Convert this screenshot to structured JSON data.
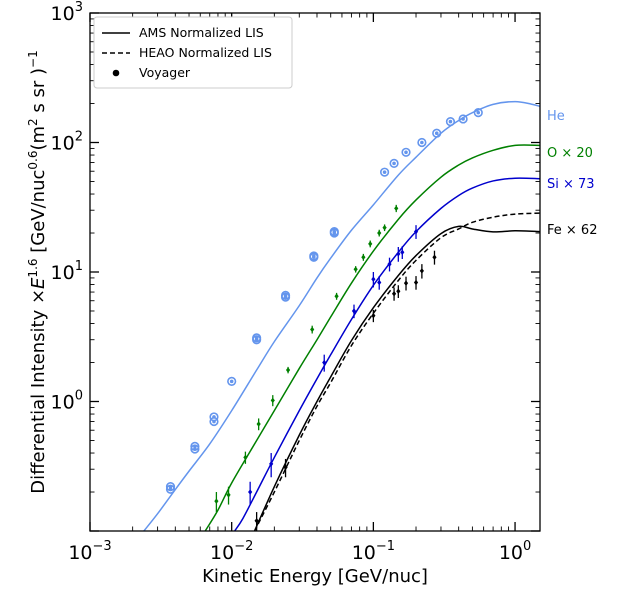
{
  "chart_data": {
    "type": "line",
    "xlabel": "Kinetic Energy [GeV/nuc]",
    "ylabel_parts": {
      "pre": "Differential Intensity ×",
      "E": "E",
      "E_exp": "1.6",
      "mid": " [GeV/nuc",
      "nuc_exp": "0.6",
      "m": "(m",
      "m_exp": "2",
      "post": " s sr )",
      "post_exp": "−1"
    },
    "x_scale": "log",
    "y_scale": "log",
    "xlim": [
      0.001,
      1.5
    ],
    "ylim": [
      0.1,
      1000
    ],
    "x_ticks": [
      {
        "value": 0.001,
        "base": "10",
        "exp": "−3"
      },
      {
        "value": 0.01,
        "base": "10",
        "exp": "−2"
      },
      {
        "value": 0.1,
        "base": "10",
        "exp": "−1"
      },
      {
        "value": 1,
        "base": "10",
        "exp": "0"
      }
    ],
    "y_ticks": [
      {
        "value": 1,
        "base": "10",
        "exp": "0"
      },
      {
        "value": 10,
        "base": "10",
        "exp": "1"
      },
      {
        "value": 100,
        "base": "10",
        "exp": "2"
      },
      {
        "value": 1000,
        "base": "10",
        "exp": "3"
      }
    ],
    "legend": {
      "position": "top-left",
      "entries": [
        {
          "label": "AMS Normalized LIS",
          "style": "solid"
        },
        {
          "label": "HEAO Normalized LIS",
          "style": "dashed"
        },
        {
          "label": "Voyager",
          "style": "marker"
        }
      ]
    },
    "series": [
      {
        "name": "He",
        "color": "#6495ed",
        "marker": "open-circle",
        "ams_lis": [
          [
            0.0024,
            0.1
          ],
          [
            0.003,
            0.136
          ],
          [
            0.004,
            0.209
          ],
          [
            0.005,
            0.29
          ],
          [
            0.007,
            0.47
          ],
          [
            0.01,
            0.85
          ],
          [
            0.015,
            1.75
          ],
          [
            0.02,
            2.9
          ],
          [
            0.03,
            5.5
          ],
          [
            0.04,
            9.0
          ],
          [
            0.05,
            12.8
          ],
          [
            0.07,
            21
          ],
          [
            0.1,
            33
          ],
          [
            0.15,
            56
          ],
          [
            0.2,
            77
          ],
          [
            0.3,
            118
          ],
          [
            0.4,
            148
          ],
          [
            0.5,
            170
          ],
          [
            0.7,
            197
          ],
          [
            1.0,
            207
          ],
          [
            1.3,
            198
          ],
          [
            1.5,
            190
          ]
        ],
        "voyager": [
          [
            0.0037,
            0.21
          ],
          [
            0.0037,
            0.22
          ],
          [
            0.0055,
            0.43
          ],
          [
            0.0055,
            0.45
          ],
          [
            0.0075,
            0.7
          ],
          [
            0.0075,
            0.76
          ],
          [
            0.01,
            1.43
          ],
          [
            0.015,
            3.0
          ],
          [
            0.015,
            3.1
          ],
          [
            0.024,
            6.4
          ],
          [
            0.024,
            6.6
          ],
          [
            0.038,
            13
          ],
          [
            0.038,
            13.3
          ],
          [
            0.053,
            20
          ],
          [
            0.053,
            20.5
          ],
          [
            0.12,
            59
          ],
          [
            0.14,
            69
          ],
          [
            0.17,
            84
          ],
          [
            0.22,
            100
          ],
          [
            0.28,
            118
          ],
          [
            0.35,
            145
          ],
          [
            0.43,
            152
          ],
          [
            0.55,
            170
          ]
        ]
      },
      {
        "name": "O × 20",
        "color": "#008000",
        "marker": "diamond",
        "ams_lis": [
          [
            0.0065,
            0.1
          ],
          [
            0.008,
            0.145
          ],
          [
            0.01,
            0.235
          ],
          [
            0.015,
            0.5
          ],
          [
            0.02,
            0.85
          ],
          [
            0.03,
            1.8
          ],
          [
            0.04,
            3.0
          ],
          [
            0.05,
            4.5
          ],
          [
            0.07,
            8.2
          ],
          [
            0.1,
            14.5
          ],
          [
            0.15,
            25.5
          ],
          [
            0.2,
            36
          ],
          [
            0.3,
            54
          ],
          [
            0.4,
            67
          ],
          [
            0.5,
            76
          ],
          [
            0.7,
            87
          ],
          [
            1.0,
            95
          ],
          [
            1.5,
            95
          ]
        ],
        "voyager": [
          [
            0.0078,
            0.17,
            0.03
          ],
          [
            0.0095,
            0.19,
            0.03
          ],
          [
            0.0125,
            0.37,
            0.04
          ],
          [
            0.0155,
            0.67,
            0.07
          ],
          [
            0.0195,
            1.02,
            0.1
          ],
          [
            0.025,
            1.75,
            0.1
          ],
          [
            0.037,
            3.6,
            0.25
          ],
          [
            0.055,
            6.5,
            0.4
          ],
          [
            0.075,
            10.5,
            0.6
          ],
          [
            0.085,
            13,
            0.8
          ],
          [
            0.095,
            16.5,
            1
          ],
          [
            0.11,
            20,
            1.2
          ],
          [
            0.12,
            22,
            1.3
          ],
          [
            0.145,
            31,
            2
          ]
        ]
      },
      {
        "name": "Si × 73",
        "color": "#0000cd",
        "marker": "diamond",
        "ams_lis": [
          [
            0.0105,
            0.1
          ],
          [
            0.012,
            0.125
          ],
          [
            0.015,
            0.2
          ],
          [
            0.02,
            0.37
          ],
          [
            0.03,
            0.85
          ],
          [
            0.04,
            1.5
          ],
          [
            0.05,
            2.3
          ],
          [
            0.07,
            4.3
          ],
          [
            0.1,
            7.9
          ],
          [
            0.15,
            14.2
          ],
          [
            0.2,
            20.5
          ],
          [
            0.3,
            31
          ],
          [
            0.4,
            39
          ],
          [
            0.5,
            44.5
          ],
          [
            0.7,
            50.5
          ],
          [
            1.0,
            53
          ],
          [
            1.5,
            52.5
          ]
        ],
        "voyager": [
          [
            0.0135,
            0.2,
            0.04
          ],
          [
            0.019,
            0.33,
            0.07
          ],
          [
            0.045,
            2.0,
            0.3
          ],
          [
            0.073,
            5.0,
            0.6
          ],
          [
            0.1,
            8.8,
            1.2
          ],
          [
            0.11,
            8.3,
            1.0
          ],
          [
            0.13,
            11.5,
            1.4
          ],
          [
            0.15,
            13.8,
            1.8
          ],
          [
            0.16,
            14.2,
            1.6
          ],
          [
            0.2,
            20.5,
            2.5
          ]
        ]
      },
      {
        "name": "Fe × 62",
        "color": "#000000",
        "marker": "diamond",
        "ams_lis": [
          [
            0.0145,
            0.1
          ],
          [
            0.02,
            0.22
          ],
          [
            0.03,
            0.55
          ],
          [
            0.04,
            1.0
          ],
          [
            0.05,
            1.55
          ],
          [
            0.07,
            2.95
          ],
          [
            0.1,
            5.3
          ],
          [
            0.15,
            9.4
          ],
          [
            0.2,
            13.4
          ],
          [
            0.3,
            19.8
          ],
          [
            0.4,
            22.5
          ],
          [
            0.5,
            21.5
          ],
          [
            0.7,
            20.4
          ],
          [
            1.0,
            20.8
          ],
          [
            1.5,
            20.5
          ]
        ],
        "heao_lis": [
          [
            0.0145,
            0.1
          ],
          [
            0.02,
            0.2
          ],
          [
            0.03,
            0.5
          ],
          [
            0.04,
            0.92
          ],
          [
            0.05,
            1.4
          ],
          [
            0.07,
            2.7
          ],
          [
            0.1,
            4.8
          ],
          [
            0.15,
            8.6
          ],
          [
            0.2,
            12.3
          ],
          [
            0.3,
            18.4
          ],
          [
            0.4,
            21.5
          ],
          [
            0.5,
            24.2
          ],
          [
            0.7,
            26.5
          ],
          [
            1.0,
            28
          ],
          [
            1.5,
            28.5
          ]
        ],
        "voyager": [
          [
            0.015,
            0.12,
            0.02
          ],
          [
            0.024,
            0.31,
            0.05
          ],
          [
            0.1,
            4.6,
            0.5
          ],
          [
            0.14,
            6.8,
            0.8
          ],
          [
            0.15,
            7.1,
            0.8
          ],
          [
            0.17,
            8.2,
            1.0
          ],
          [
            0.2,
            8.3,
            1.0
          ],
          [
            0.22,
            10.2,
            1.3
          ],
          [
            0.27,
            13,
            1.6
          ]
        ]
      }
    ]
  }
}
